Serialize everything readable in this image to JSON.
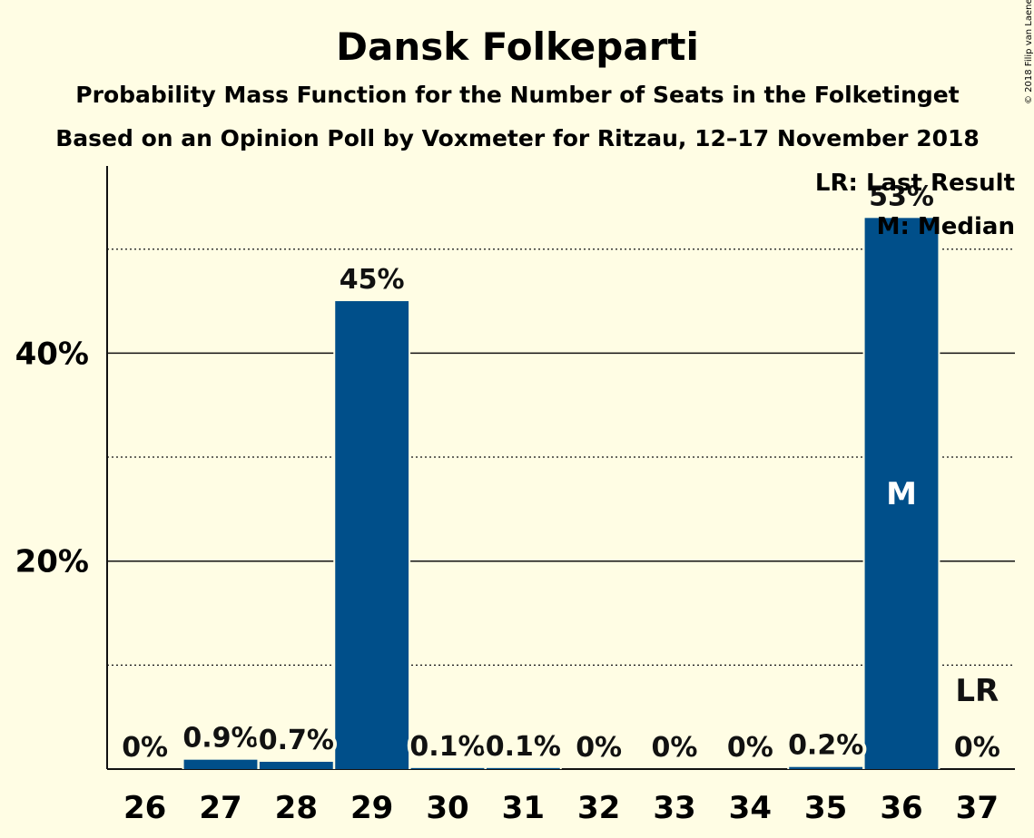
{
  "chart_data": {
    "type": "bar",
    "title": "Dansk Folkeparti",
    "subtitle": "Probability Mass Function for the Number of Seats in the Folketinget",
    "subtitle2": "Based on an Opinion Poll by Voxmeter for Ritzau, 12–17 November 2018",
    "copyright": "© 2018 Filip van Laenen",
    "categories": [
      "26",
      "27",
      "28",
      "29",
      "30",
      "31",
      "32",
      "33",
      "34",
      "35",
      "36",
      "37"
    ],
    "values": [
      0,
      0.9,
      0.7,
      45,
      0.1,
      0.1,
      0,
      0,
      0,
      0.2,
      53,
      0
    ],
    "value_labels": [
      "0%",
      "0.9%",
      "0.7%",
      "45%",
      "0.1%",
      "0.1%",
      "0%",
      "0%",
      "0%",
      "0.2%",
      "53%",
      "0%"
    ],
    "ylim": [
      0,
      58
    ],
    "y_ticks": [
      {
        "value": 20,
        "label": "20%"
      },
      {
        "value": 40,
        "label": "40%"
      }
    ],
    "y_minor_gridlines": [
      10,
      30,
      50
    ],
    "median_seat": "36",
    "median_marker": "M",
    "last_result_seat": "37",
    "last_result_marker": "LR",
    "legend": {
      "placement": "top-right",
      "items": [
        "LR: Last Result",
        "M: Median"
      ]
    },
    "colors": {
      "bar": "#004f8a",
      "background": "#fffde4",
      "text": "#111111",
      "median_text": "#ffffff"
    }
  }
}
